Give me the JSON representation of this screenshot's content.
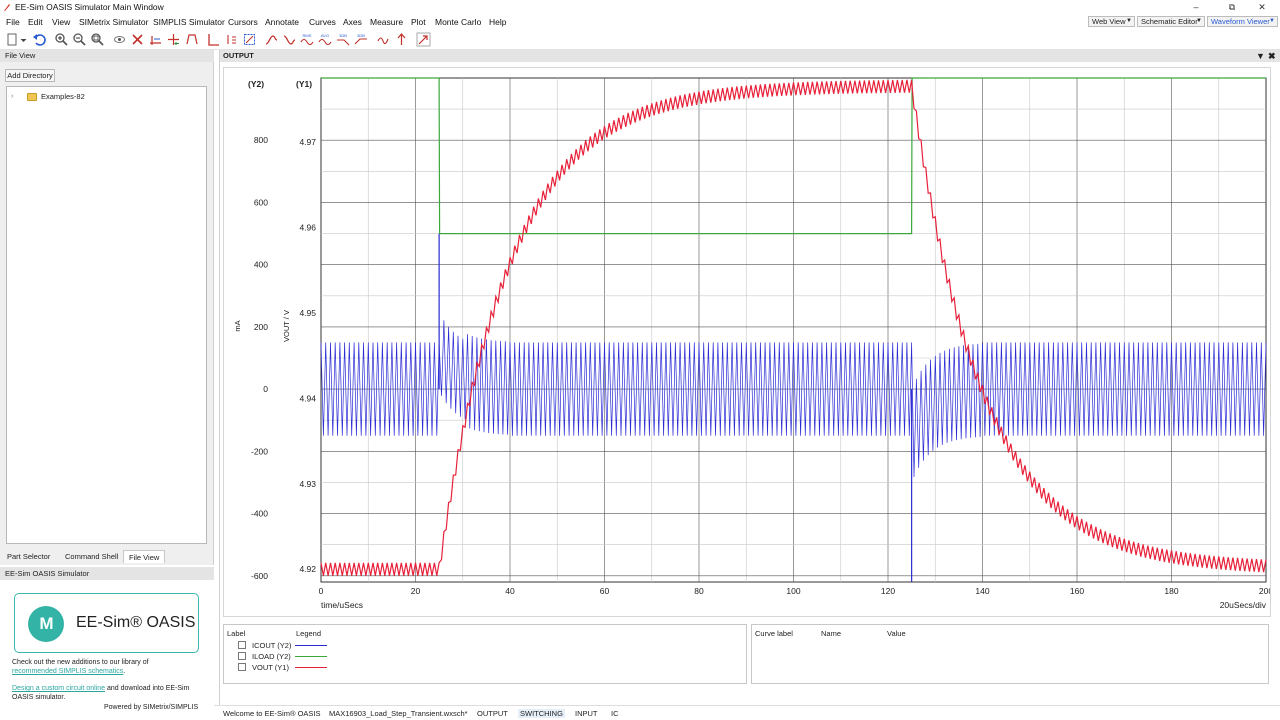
{
  "window": {
    "title": "EE-Sim OASIS Simulator Main Window",
    "controls": [
      "–",
      "⧉",
      "✕"
    ]
  },
  "menu": [
    "File",
    "Edit",
    "View",
    "SIMetrix Simulator",
    "SIMPLIS Simulator",
    "Cursors",
    "Annotate",
    "Curves",
    "Axes",
    "Measure",
    "Plot",
    "Monte Carlo",
    "Help"
  ],
  "view_selectors": [
    "Web View",
    "Schematic Editor",
    "Waveform Viewer"
  ],
  "toolbar_icons": [
    "new-icon",
    "dropdown-icon",
    "undo-icon",
    "zoom-in-icon",
    "zoom-out-icon",
    "zoom-fit-icon",
    "eye-icon",
    "delete-curve-icon",
    "cursor-icon",
    "cursor-cross-icon",
    "measure-icon",
    "grid-icon",
    "select-box-icon",
    "select-area-icon",
    "probe-icon",
    "waveform-icon",
    "rms-icon",
    "avg-icon",
    "db-icon",
    "db-phase-icon",
    "fft-icon",
    "marker-icon",
    "arrow-icon"
  ],
  "toolbar_mini_labels": {
    "rms": "RMS",
    "avg": "AVG",
    "db": "3DB",
    "db2": "3DB"
  },
  "file_view": {
    "header": "File View",
    "add_directory": "Add Directory",
    "tree": [
      {
        "label": "Examples-82",
        "type": "folder"
      }
    ]
  },
  "left_tabs": [
    {
      "label": "Part Selector",
      "active": false
    },
    {
      "label": "Command Shell",
      "active": false
    },
    {
      "label": "File View",
      "active": true
    }
  ],
  "eesim_panel": {
    "header": "EE-Sim OASIS Simulator",
    "logo_mark": "M",
    "brand": "EE-Sim® OASIS",
    "text1a": "Check out the new additions to our library of",
    "text1_link": "recommended SIMPLIS schematics",
    "text1b": ".",
    "text2_link": "Design a custom circuit online",
    "text2a": " and download into EE-Sim",
    "text2b": "OASIS simulator.",
    "powered": "Powered by SIMetrix/SIMPLIS",
    "accent": "#33b2a6"
  },
  "output": {
    "header": "OUTPUT",
    "controls": [
      "▼",
      "✖"
    ]
  },
  "chart_data": {
    "type": "line",
    "xlabel": "time/uSecs",
    "xdiv": "20uSecs/div",
    "xlim": [
      0,
      200
    ],
    "x_ticks": [
      0,
      20,
      40,
      60,
      80,
      100,
      120,
      140,
      160,
      180,
      200
    ],
    "y2": {
      "title": "(Y2)",
      "unit": "mA",
      "ylim": [
        -620,
        1000
      ],
      "ticks": [
        800,
        600,
        400,
        200,
        0,
        -200,
        -400,
        -600
      ]
    },
    "y1": {
      "title": "(Y1)",
      "unit": "VOUT / V",
      "ylim": [
        4.9185,
        4.9775
      ],
      "ticks": [
        4.97,
        4.96,
        4.95,
        4.94,
        4.93,
        4.92
      ]
    },
    "grid": true,
    "series": [
      {
        "name": "ICOUT (Y2)",
        "axis": "y2",
        "color": "#2b2bd6",
        "ripple_pp": 300,
        "steps": [
          {
            "t": 25,
            "spike": 500
          },
          {
            "t": 125,
            "spike": -620
          }
        ]
      },
      {
        "name": "ILOAD (Y2)",
        "axis": "y2",
        "color": "#3aa83a",
        "x": [
          0,
          25,
          25.1,
          125,
          125.1,
          200
        ],
        "y": [
          1000,
          1000,
          500,
          500,
          1000,
          1000
        ]
      },
      {
        "name": "VOUT (Y1)",
        "axis": "y1",
        "color": "#e8213a",
        "low": 4.92,
        "high": 4.9766,
        "rise_start": 25,
        "fall_start": 125,
        "tau_us": 15,
        "ripple_pp": 0.0015
      }
    ]
  },
  "legend": {
    "col_label": "Label",
    "col_legend": "Legend",
    "rows": [
      {
        "name": "ICOUT (Y2)",
        "color": "#2b2bd6"
      },
      {
        "name": "ILOAD (Y2)",
        "color": "#3aa83a"
      },
      {
        "name": "VOUT (Y1)",
        "color": "#e8213a"
      }
    ]
  },
  "curve_pane": {
    "col1": "Curve label",
    "col2": "Name",
    "col3": "Value"
  },
  "status_tabs": [
    {
      "label": "Welcome to EE-Sim® OASIS",
      "active": false
    },
    {
      "label": "MAX16903_Load_Step_Transient.wxsch*",
      "active": false
    },
    {
      "label": "OUTPUT",
      "active": false
    },
    {
      "label": "SWITCHING",
      "active": true
    },
    {
      "label": "INPUT",
      "active": false
    },
    {
      "label": "IC",
      "active": false
    }
  ]
}
